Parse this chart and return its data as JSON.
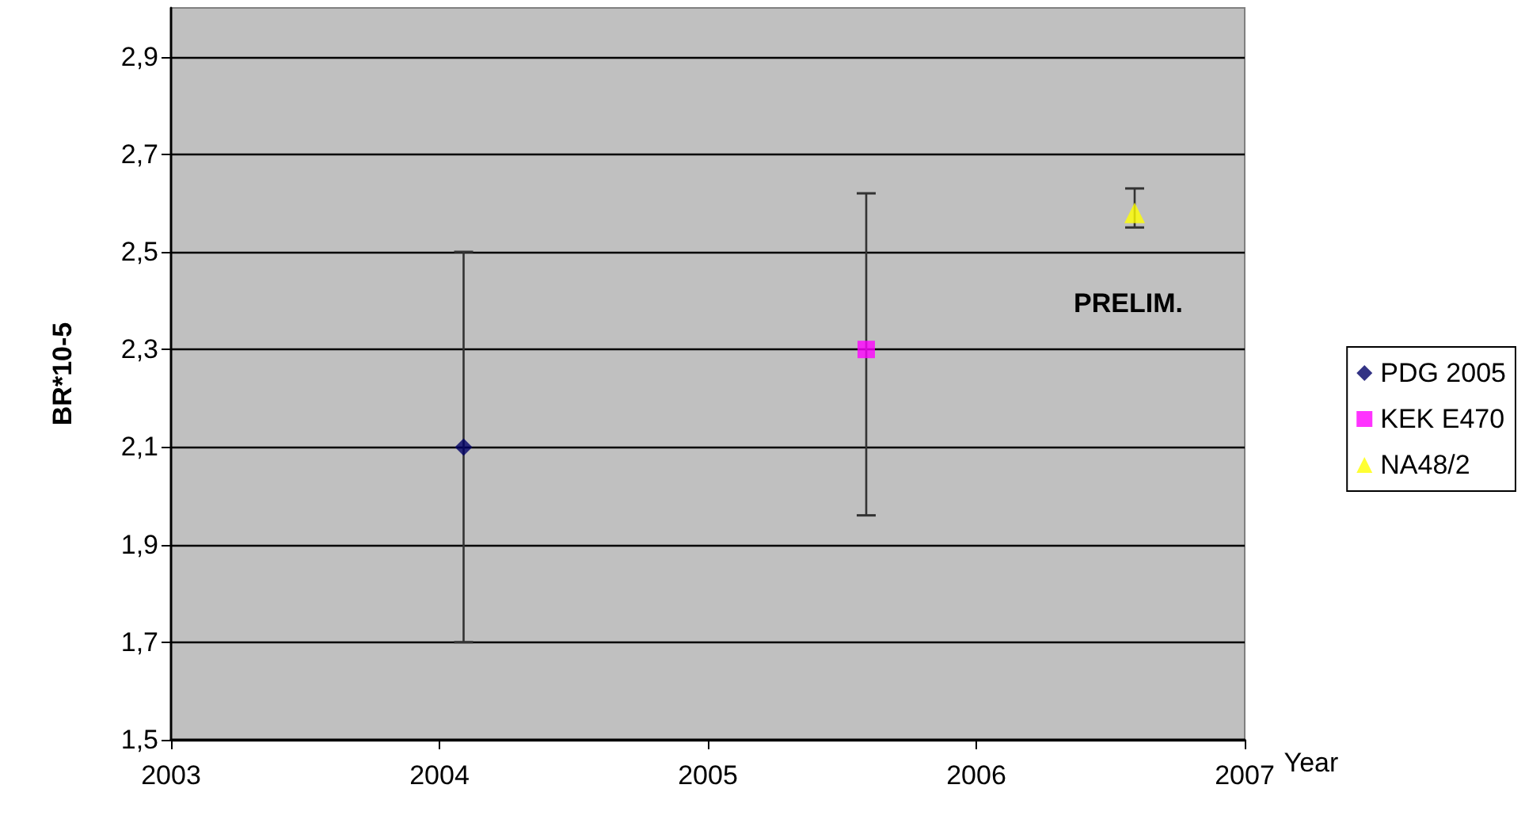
{
  "chart_data": {
    "type": "scatter",
    "xlabel": "Year",
    "ylabel": "BR*10-5",
    "xlim": [
      2003,
      2007
    ],
    "xticks": [
      2003,
      2004,
      2005,
      2006,
      2007
    ],
    "ylim": [
      1.5,
      3.0
    ],
    "yticks": [
      {
        "value": 1.5,
        "label": "1,5"
      },
      {
        "value": 1.7,
        "label": "1,7"
      },
      {
        "value": 1.9,
        "label": "1,9"
      },
      {
        "value": 2.1,
        "label": "2,1"
      },
      {
        "value": 2.3,
        "label": "2,3"
      },
      {
        "value": 2.5,
        "label": "2,5"
      },
      {
        "value": 2.7,
        "label": "2,7"
      },
      {
        "value": 2.9,
        "label": "2,9"
      }
    ],
    "grid": "y",
    "legend": "right",
    "series": [
      {
        "name": "PDG 2005",
        "color": "#000066",
        "marker": "diamond",
        "x": [
          2004.09
        ],
        "values": [
          2.1
        ],
        "errors": [
          [
            1.7,
            2.5
          ]
        ]
      },
      {
        "name": "KEK E470",
        "color": "#ff00ff",
        "marker": "square",
        "x": [
          2005.59
        ],
        "values": [
          2.3
        ],
        "errors": [
          [
            1.96,
            2.62
          ]
        ]
      },
      {
        "name": "NA48/2",
        "color": "#ffff00",
        "marker": "triangle",
        "x": [
          2006.59
        ],
        "values": [
          2.58
        ],
        "errors": [
          [
            2.55,
            2.63
          ]
        ]
      }
    ],
    "annotations": [
      "PRELIM."
    ]
  }
}
